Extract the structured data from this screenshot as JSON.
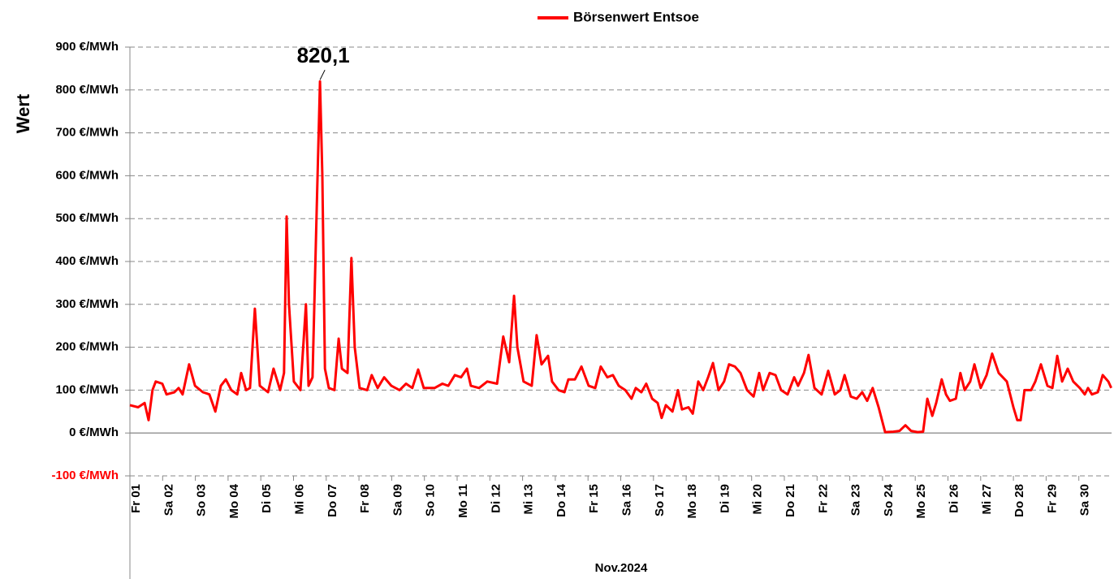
{
  "chart_data": {
    "type": "line",
    "title": null,
    "y_label": "Wert",
    "x_label": "Nov.2024",
    "x": [
      0,
      0.25,
      0.45,
      0.57,
      0.69,
      0.79,
      0.99,
      1.12,
      1.36,
      1.49,
      1.61,
      1.81,
      1.99,
      2.23,
      2.43,
      2.61,
      2.78,
      2.93,
      3.1,
      3.28,
      3.4,
      3.55,
      3.67,
      3.82,
      3.97,
      4.22,
      4.39,
      4.59,
      4.71,
      4.79,
      4.86,
      5.01,
      5.21,
      5.38,
      5.46,
      5.58,
      5.71,
      5.81,
      5.88,
      5.96,
      6.08,
      6.25,
      6.38,
      6.48,
      6.65,
      6.77,
      6.87,
      7.02,
      7.25,
      7.39,
      7.57,
      7.77,
      7.99,
      8.24,
      8.44,
      8.63,
      8.81,
      8.98,
      9.31,
      9.55,
      9.73,
      9.93,
      10.12,
      10.3,
      10.42,
      10.67,
      10.92,
      11.22,
      11.41,
      11.59,
      11.74,
      11.84,
      12.03,
      12.28,
      12.43,
      12.58,
      12.78,
      12.9,
      13.1,
      13.28,
      13.4,
      13.6,
      13.8,
      14.02,
      14.22,
      14.39,
      14.59,
      14.76,
      14.94,
      15.14,
      15.33,
      15.46,
      15.63,
      15.78,
      15.96,
      16.13,
      16.25,
      16.38,
      16.58,
      16.75,
      16.87,
      17.07,
      17.2,
      17.37,
      17.52,
      17.67,
      17.82,
      17.99,
      18.16,
      18.31,
      18.49,
      18.66,
      18.86,
      19.06,
      19.23,
      19.35,
      19.55,
      19.73,
      19.9,
      20.1,
      20.3,
      20.42,
      20.6,
      20.74,
      20.92,
      21.14,
      21.34,
      21.54,
      21.71,
      21.84,
      22.03,
      22.21,
      22.38,
      22.53,
      22.7,
      22.88,
      23.08,
      23.33,
      23.52,
      23.7,
      23.87,
      24.07,
      24.24,
      24.37,
      24.52,
      24.64,
      24.81,
      24.94,
      25.06,
      25.24,
      25.38,
      25.51,
      25.68,
      25.81,
      26.0,
      26.18,
      26.35,
      26.55,
      26.8,
      27.0,
      27.12,
      27.22,
      27.34,
      27.54,
      27.67,
      27.84,
      28.04,
      28.19,
      28.34,
      28.49,
      28.66,
      28.83,
      29.03,
      29.18,
      29.28,
      29.4,
      29.58,
      29.73,
      29.9,
      29.99
    ],
    "series": [
      {
        "name": "Börsenwert Entsoe",
        "color": "#ff0000",
        "values": [
          65,
          60,
          70,
          30,
          100,
          120,
          115,
          90,
          95,
          105,
          90,
          160,
          110,
          95,
          90,
          50,
          110,
          125,
          100,
          90,
          140,
          100,
          105,
          290,
          110,
          95,
          150,
          100,
          140,
          505,
          300,
          120,
          100,
          300,
          110,
          130,
          525,
          820.1,
          600,
          150,
          105,
          100,
          220,
          150,
          140,
          408,
          200,
          105,
          100,
          135,
          105,
          130,
          110,
          100,
          115,
          105,
          148,
          105,
          105,
          115,
          110,
          135,
          130,
          150,
          110,
          105,
          120,
          115,
          225,
          165,
          320,
          200,
          120,
          110,
          228,
          160,
          180,
          120,
          100,
          95,
          125,
          125,
          155,
          110,
          105,
          155,
          130,
          135,
          110,
          100,
          80,
          105,
          95,
          115,
          80,
          70,
          35,
          65,
          50,
          100,
          55,
          60,
          45,
          120,
          100,
          130,
          163,
          100,
          120,
          160,
          155,
          140,
          100,
          85,
          140,
          100,
          140,
          135,
          100,
          90,
          130,
          110,
          140,
          182,
          105,
          90,
          145,
          90,
          100,
          135,
          85,
          80,
          95,
          75,
          105,
          60,
          2,
          3,
          5,
          18,
          5,
          2,
          3,
          80,
          40,
          70,
          125,
          90,
          75,
          80,
          140,
          100,
          120,
          160,
          105,
          135,
          185,
          140,
          120,
          60,
          30,
          30,
          100,
          100,
          120,
          160,
          110,
          105,
          180,
          120,
          150,
          120,
          105,
          90,
          105,
          90,
          95,
          135,
          120,
          105
        ]
      }
    ],
    "annotations": [
      {
        "label": "820,1",
        "value": 820.1,
        "x": 5.81
      }
    ],
    "xlim": [
      0,
      30
    ],
    "xticks": [
      {
        "value": 0,
        "label": "Fr 01"
      },
      {
        "value": 1,
        "label": "Sa 02"
      },
      {
        "value": 2,
        "label": "So 03"
      },
      {
        "value": 3,
        "label": "Mo 04"
      },
      {
        "value": 4,
        "label": "Di 05"
      },
      {
        "value": 5,
        "label": "Mi 06"
      },
      {
        "value": 6,
        "label": "Do 07"
      },
      {
        "value": 7,
        "label": "Fr 08"
      },
      {
        "value": 8,
        "label": "Sa 09"
      },
      {
        "value": 9,
        "label": "So 10"
      },
      {
        "value": 10,
        "label": "Mo 11"
      },
      {
        "value": 11,
        "label": "Di 12"
      },
      {
        "value": 12,
        "label": "Mi 13"
      },
      {
        "value": 13,
        "label": "Do 14"
      },
      {
        "value": 14,
        "label": "Fr 15"
      },
      {
        "value": 15,
        "label": "Sa 16"
      },
      {
        "value": 16,
        "label": "So 17"
      },
      {
        "value": 17,
        "label": "Mo 18"
      },
      {
        "value": 18,
        "label": "Di 19"
      },
      {
        "value": 19,
        "label": "Mi 20"
      },
      {
        "value": 20,
        "label": "Do 21"
      },
      {
        "value": 21,
        "label": "Fr 22"
      },
      {
        "value": 22,
        "label": "Sa 23"
      },
      {
        "value": 23,
        "label": "So 24"
      },
      {
        "value": 24,
        "label": "Mo 25"
      },
      {
        "value": 25,
        "label": "Di 26"
      },
      {
        "value": 26,
        "label": "Mi 27"
      },
      {
        "value": 27,
        "label": "Do 28"
      },
      {
        "value": 28,
        "label": "Fr 29"
      },
      {
        "value": 29,
        "label": "Sa 30"
      }
    ],
    "ylim": [
      -100,
      900
    ],
    "yticks": [
      {
        "value": -100,
        "label": "-100 €/MWh"
      },
      {
        "value": 0,
        "label": "0 €/MWh"
      },
      {
        "value": 100,
        "label": "100 €/MWh"
      },
      {
        "value": 200,
        "label": "200 €/MWh"
      },
      {
        "value": 300,
        "label": "300 €/MWh"
      },
      {
        "value": 400,
        "label": "400 €/MWh"
      },
      {
        "value": 500,
        "label": "500 €/MWh"
      },
      {
        "value": 600,
        "label": "600 €/MWh"
      },
      {
        "value": 700,
        "label": "700 €/MWh"
      },
      {
        "value": 800,
        "label": "800 €/MWh"
      },
      {
        "value": 900,
        "label": "900 €/MWh"
      }
    ],
    "negative_tick_color": "#ff0000",
    "grid": true,
    "legend": "top"
  }
}
